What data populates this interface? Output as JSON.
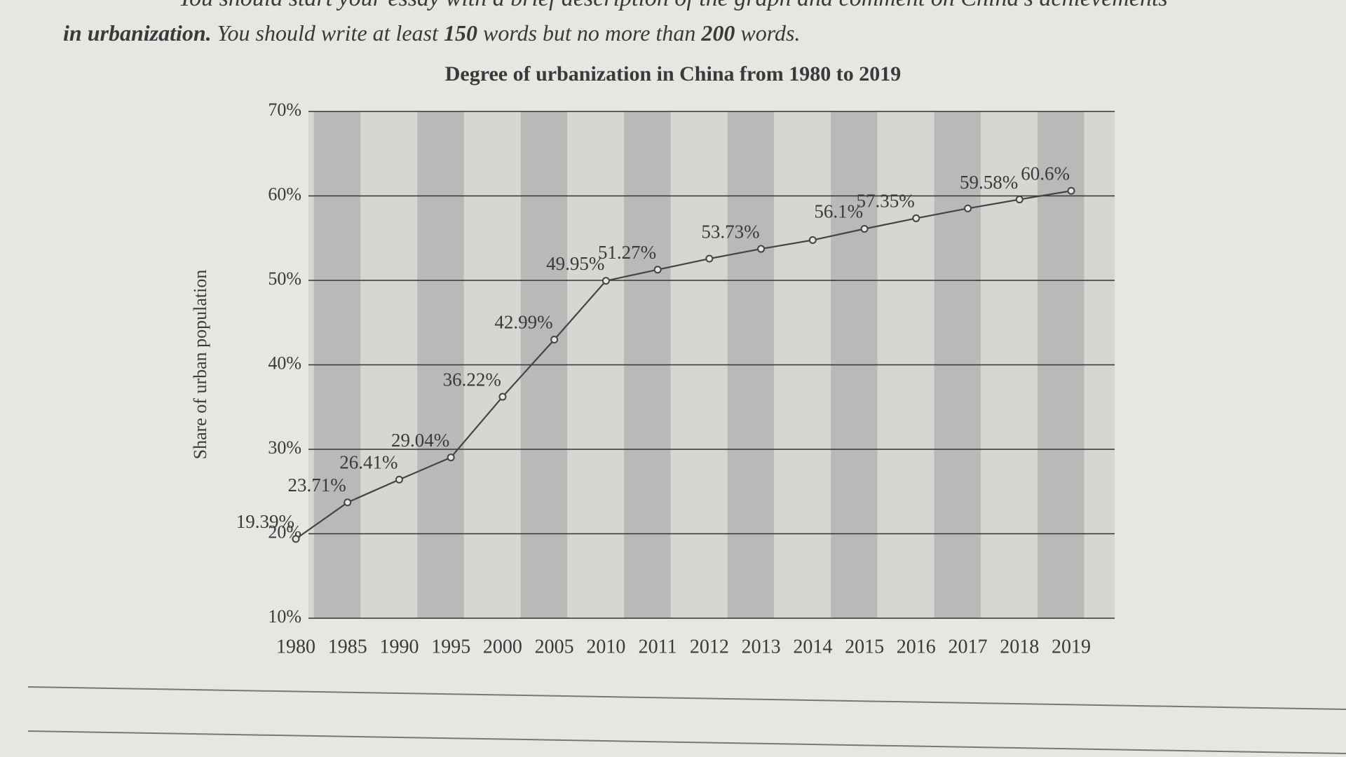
{
  "header": {
    "instruction_top": "You should start your essay with a brief description of the graph and comment on China's achievements",
    "instruction": [
      {
        "text": "in urbanization.",
        "bold": true
      },
      {
        "text": " You should write at least ",
        "bold": false
      },
      {
        "text": "150",
        "bold": true
      },
      {
        "text": " words but no more than ",
        "bold": false
      },
      {
        "text": "200",
        "bold": true
      },
      {
        "text": " words.",
        "bold": false
      }
    ]
  },
  "chart_data": {
    "type": "line",
    "title": "Degree of urbanization in China from 1980 to 2019",
    "y_label": "Share of urban population",
    "categories": [
      "1980",
      "1985",
      "1990",
      "1995",
      "2000",
      "2005",
      "2010",
      "2011",
      "2012",
      "2013",
      "2014",
      "2015",
      "2016",
      "2017",
      "2018",
      "2019"
    ],
    "values": [
      19.39,
      23.71,
      26.41,
      29.04,
      36.22,
      42.99,
      49.95,
      51.27,
      52.57,
      53.73,
      54.77,
      56.1,
      57.35,
      58.52,
      59.58,
      60.6
    ],
    "value_labels": [
      "19.39%",
      "23.71%",
      "26.41%",
      "29.04%",
      "36.22%",
      "42.99%",
      "49.95%",
      "51.27%",
      null,
      "53.73%",
      null,
      "56.1%",
      "57.35%",
      null,
      "59.58%",
      "60.6%"
    ],
    "color": "#444444",
    "ylim": [
      10,
      70
    ],
    "yticks": [
      {
        "value": 10,
        "label": "10%"
      },
      {
        "value": 20,
        "label": "20%"
      },
      {
        "value": 30,
        "label": "30%"
      },
      {
        "value": 40,
        "label": "40%"
      },
      {
        "value": 50,
        "label": "50%"
      },
      {
        "value": 60,
        "label": "60%"
      },
      {
        "value": 70,
        "label": "70%"
      }
    ],
    "grid": true,
    "stripes": true
  }
}
